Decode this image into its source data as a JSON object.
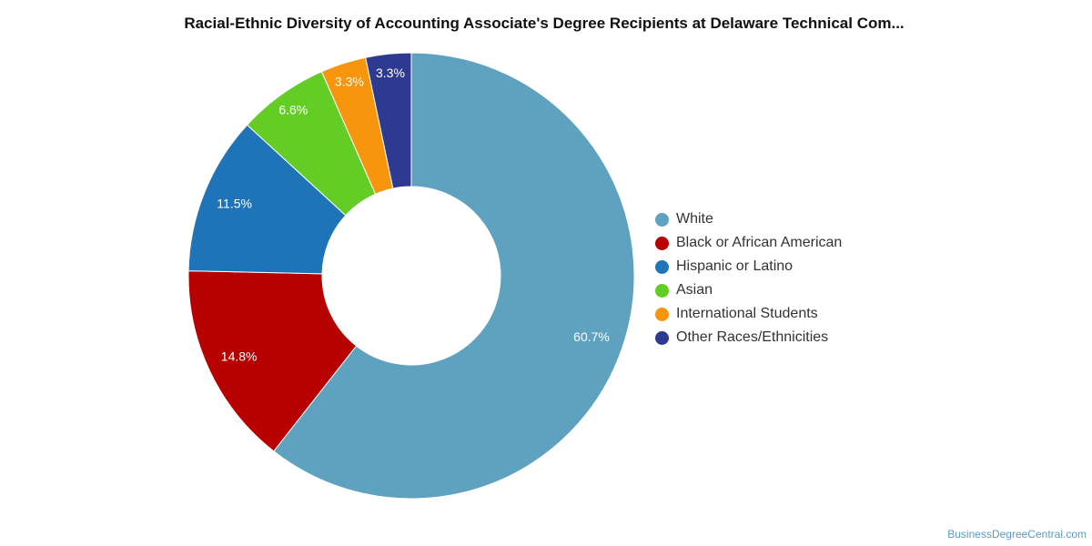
{
  "chart_data": {
    "type": "pie",
    "variant": "donut",
    "title": "Racial-Ethnic Diversity of Accounting Associate's Degree Recipients at Delaware Technical Com...",
    "slices": [
      {
        "label": "White",
        "value": 60.7,
        "display": "60.7%",
        "color": "#5ea2bf"
      },
      {
        "label": "Black or African American",
        "value": 14.8,
        "display": "14.8%",
        "color": "#b70000"
      },
      {
        "label": "Hispanic or Latino",
        "value": 11.5,
        "display": "11.5%",
        "color": "#1f74b8"
      },
      {
        "label": "Asian",
        "value": 6.6,
        "display": "6.6%",
        "color": "#63cd25"
      },
      {
        "label": "International Students",
        "value": 3.3,
        "display": "3.3%",
        "color": "#f7950c"
      },
      {
        "label": "Other Races/Ethnicities",
        "value": 3.3,
        "display": "3.3%",
        "color": "#2e3a8f"
      }
    ],
    "legend_position": "right",
    "start_angle": "top",
    "direction": "clockwise"
  },
  "watermark": "BusinessDegreeCentral.com"
}
